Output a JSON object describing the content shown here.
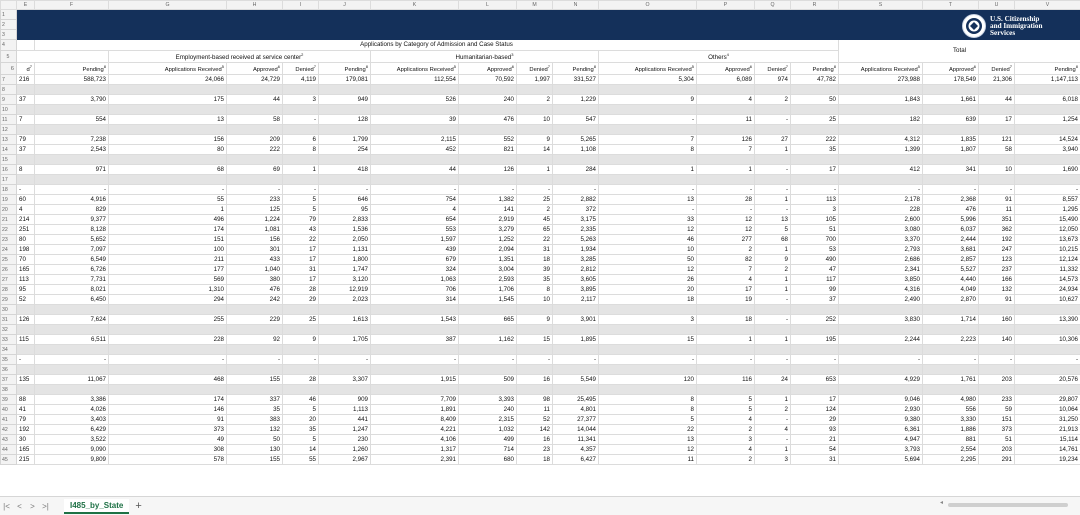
{
  "logo": {
    "line1": "U.S. Citizenship",
    "line2": "and Immigration",
    "line3": "Services",
    "seal_icon": "dhs-seal-icon"
  },
  "columns": [
    "",
    "E",
    "F",
    "G",
    "H",
    "I",
    "J",
    "K",
    "L",
    "M",
    "N",
    "O",
    "P",
    "Q",
    "R",
    "S",
    "T",
    "U",
    "V"
  ],
  "title": "Applications by Category of Admission and Case Status",
  "total_label": "Total",
  "groups": {
    "employment": "Employment-based received at service center",
    "employment_sup": "2",
    "humanitarian": "Humanitarian-based",
    "humanitarian_sup": "3",
    "others": "Others",
    "others_sup": "4"
  },
  "headers": [
    "d",
    "Pending",
    "Applications Received",
    "Approved",
    "Denied",
    "Pending",
    "Applications Received",
    "Approved",
    "Denied",
    "Pending",
    "Applications Received",
    "Approved",
    "Denied",
    "Pending",
    "Applications Received",
    "Approved",
    "Denied",
    "Pending"
  ],
  "header_sups": [
    "7",
    "8",
    "5",
    "6",
    "7",
    "8",
    "5",
    "6",
    "7",
    "8",
    "5",
    "6",
    "7",
    "8",
    "5",
    "6",
    "7",
    "8"
  ],
  "rows": [
    {
      "n": "7",
      "c": [
        "216",
        "588,723",
        "24,066",
        "24,729",
        "4,119",
        "179,081",
        "112,554",
        "70,592",
        "1,997",
        "331,527",
        "5,304",
        "6,089",
        "974",
        "47,782",
        "273,988",
        "178,549",
        "21,306",
        "1,147,113"
      ]
    },
    {
      "n": "8",
      "c": [],
      "shade": true
    },
    {
      "n": "9",
      "c": [
        "37",
        "3,790",
        "175",
        "44",
        "3",
        "949",
        "526",
        "240",
        "2",
        "1,229",
        "9",
        "4",
        "2",
        "50",
        "1,843",
        "1,661",
        "44",
        "6,018"
      ]
    },
    {
      "n": "10",
      "c": [],
      "shade": true
    },
    {
      "n": "11",
      "c": [
        "7",
        "554",
        "13",
        "58",
        "-",
        "128",
        "39",
        "476",
        "10",
        "547",
        "-",
        "11",
        "-",
        "25",
        "182",
        "639",
        "17",
        "1,254"
      ]
    },
    {
      "n": "12",
      "c": [],
      "shade": true
    },
    {
      "n": "13",
      "c": [
        "79",
        "7,238",
        "156",
        "209",
        "6",
        "1,799",
        "2,115",
        "552",
        "9",
        "5,265",
        "7",
        "126",
        "27",
        "222",
        "4,312",
        "1,835",
        "121",
        "14,524"
      ]
    },
    {
      "n": "14",
      "c": [
        "37",
        "2,543",
        "80",
        "222",
        "8",
        "254",
        "452",
        "821",
        "14",
        "1,108",
        "8",
        "7",
        "1",
        "35",
        "1,399",
        "1,807",
        "58",
        "3,940"
      ]
    },
    {
      "n": "15",
      "c": [],
      "shade": true
    },
    {
      "n": "16",
      "c": [
        "8",
        "971",
        "68",
        "69",
        "1",
        "418",
        "44",
        "126",
        "1",
        "284",
        "1",
        "1",
        "-",
        "17",
        "412",
        "341",
        "10",
        "1,690"
      ]
    },
    {
      "n": "17",
      "c": [],
      "shade": true
    },
    {
      "n": "18",
      "c": [
        "-",
        "-",
        "-",
        "-",
        "-",
        "-",
        "-",
        "-",
        "-",
        "-",
        "-",
        "-",
        "-",
        "-",
        "-",
        "-",
        "-",
        "-"
      ]
    },
    {
      "n": "19",
      "c": [
        "60",
        "4,916",
        "55",
        "233",
        "5",
        "646",
        "754",
        "1,382",
        "25",
        "2,882",
        "13",
        "28",
        "1",
        "113",
        "2,178",
        "2,368",
        "91",
        "8,557"
      ]
    },
    {
      "n": "20",
      "c": [
        "4",
        "829",
        "1",
        "125",
        "5",
        "95",
        "4",
        "141",
        "2",
        "372",
        "-",
        "-",
        "-",
        "3",
        "228",
        "476",
        "11",
        "1,295"
      ]
    },
    {
      "n": "21",
      "c": [
        "214",
        "9,377",
        "496",
        "1,224",
        "79",
        "2,833",
        "654",
        "2,919",
        "45",
        "3,175",
        "33",
        "12",
        "13",
        "105",
        "2,600",
        "5,996",
        "351",
        "15,490"
      ]
    },
    {
      "n": "22",
      "c": [
        "251",
        "8,128",
        "174",
        "1,081",
        "43",
        "1,536",
        "553",
        "3,279",
        "65",
        "2,335",
        "12",
        "12",
        "5",
        "51",
        "3,080",
        "6,037",
        "362",
        "12,050"
      ]
    },
    {
      "n": "23",
      "c": [
        "80",
        "5,652",
        "151",
        "156",
        "22",
        "2,050",
        "1,597",
        "1,252",
        "22",
        "5,263",
        "46",
        "277",
        "68",
        "700",
        "3,370",
        "2,444",
        "192",
        "13,673"
      ]
    },
    {
      "n": "24",
      "c": [
        "198",
        "7,097",
        "100",
        "301",
        "17",
        "1,131",
        "439",
        "2,094",
        "31",
        "1,934",
        "10",
        "2",
        "1",
        "53",
        "2,793",
        "3,681",
        "247",
        "10,215"
      ]
    },
    {
      "n": "25",
      "c": [
        "70",
        "6,549",
        "211",
        "433",
        "17",
        "1,800",
        "679",
        "1,351",
        "18",
        "3,285",
        "50",
        "82",
        "9",
        "490",
        "2,686",
        "2,857",
        "123",
        "12,124"
      ]
    },
    {
      "n": "26",
      "c": [
        "165",
        "6,726",
        "177",
        "1,040",
        "31",
        "1,747",
        "324",
        "3,004",
        "39",
        "2,812",
        "12",
        "7",
        "2",
        "47",
        "2,341",
        "5,527",
        "237",
        "11,332"
      ]
    },
    {
      "n": "27",
      "c": [
        "113",
        "7,731",
        "569",
        "380",
        "17",
        "3,120",
        "1,063",
        "2,593",
        "35",
        "3,605",
        "26",
        "4",
        "1",
        "117",
        "3,850",
        "4,440",
        "166",
        "14,573"
      ]
    },
    {
      "n": "28",
      "c": [
        "95",
        "8,021",
        "1,310",
        "476",
        "28",
        "12,919",
        "706",
        "1,706",
        "8",
        "3,895",
        "20",
        "17",
        "1",
        "99",
        "4,316",
        "4,049",
        "132",
        "24,934"
      ]
    },
    {
      "n": "29",
      "c": [
        "52",
        "6,450",
        "294",
        "242",
        "29",
        "2,023",
        "314",
        "1,545",
        "10",
        "2,117",
        "18",
        "19",
        "-",
        "37",
        "2,490",
        "2,870",
        "91",
        "10,627"
      ]
    },
    {
      "n": "30",
      "c": [],
      "shade": true
    },
    {
      "n": "31",
      "c": [
        "126",
        "7,624",
        "255",
        "229",
        "25",
        "1,613",
        "1,543",
        "665",
        "9",
        "3,901",
        "3",
        "18",
        "-",
        "252",
        "3,830",
        "1,714",
        "160",
        "13,390"
      ]
    },
    {
      "n": "32",
      "c": [],
      "shade": true
    },
    {
      "n": "33",
      "c": [
        "115",
        "6,511",
        "228",
        "92",
        "9",
        "1,705",
        "387",
        "1,162",
        "15",
        "1,895",
        "15",
        "1",
        "1",
        "195",
        "2,244",
        "2,223",
        "140",
        "10,306"
      ]
    },
    {
      "n": "34",
      "c": [],
      "shade": true
    },
    {
      "n": "35",
      "c": [
        "-",
        "-",
        "-",
        "-",
        "-",
        "-",
        "-",
        "-",
        "-",
        "-",
        "-",
        "-",
        "-",
        "-",
        "-",
        "-",
        "-",
        "-"
      ]
    },
    {
      "n": "36",
      "c": [],
      "shade": true
    },
    {
      "n": "37",
      "c": [
        "135",
        "11,067",
        "468",
        "155",
        "28",
        "3,307",
        "1,915",
        "509",
        "16",
        "5,549",
        "120",
        "116",
        "24",
        "653",
        "4,929",
        "1,761",
        "203",
        "20,576"
      ]
    },
    {
      "n": "38",
      "c": [],
      "shade": true
    },
    {
      "n": "39",
      "c": [
        "88",
        "3,386",
        "174",
        "337",
        "46",
        "909",
        "7,709",
        "3,393",
        "98",
        "25,495",
        "8",
        "5",
        "1",
        "17",
        "9,046",
        "4,980",
        "233",
        "29,807"
      ]
    },
    {
      "n": "40",
      "c": [
        "41",
        "4,026",
        "146",
        "35",
        "5",
        "1,113",
        "1,891",
        "240",
        "11",
        "4,801",
        "8",
        "5",
        "2",
        "124",
        "2,930",
        "556",
        "59",
        "10,064"
      ]
    },
    {
      "n": "41",
      "c": [
        "79",
        "3,403",
        "91",
        "383",
        "20",
        "441",
        "8,409",
        "2,315",
        "52",
        "27,377",
        "5",
        "4",
        "-",
        "29",
        "9,380",
        "3,330",
        "151",
        "31,250"
      ]
    },
    {
      "n": "42",
      "c": [
        "192",
        "6,429",
        "373",
        "132",
        "35",
        "1,247",
        "4,221",
        "1,032",
        "142",
        "14,044",
        "22",
        "2",
        "4",
        "93",
        "6,361",
        "1,886",
        "373",
        "21,913"
      ]
    },
    {
      "n": "43",
      "c": [
        "30",
        "3,522",
        "49",
        "50",
        "5",
        "230",
        "4,106",
        "499",
        "16",
        "11,341",
        "13",
        "3",
        "-",
        "21",
        "4,947",
        "881",
        "51",
        "15,114"
      ]
    },
    {
      "n": "44",
      "c": [
        "165",
        "9,090",
        "308",
        "130",
        "14",
        "1,260",
        "1,317",
        "714",
        "23",
        "4,357",
        "12",
        "4",
        "1",
        "54",
        "3,793",
        "2,554",
        "203",
        "14,761"
      ]
    },
    {
      "n": "45",
      "c": [
        "215",
        "9,809",
        "578",
        "155",
        "55",
        "2,967",
        "2,391",
        "680",
        "18",
        "6,427",
        "11",
        "2",
        "3",
        "31",
        "5,694",
        "2,295",
        "291",
        "19,234"
      ]
    }
  ],
  "sheet_tab": "I485_by_State",
  "add_sheet": "+"
}
